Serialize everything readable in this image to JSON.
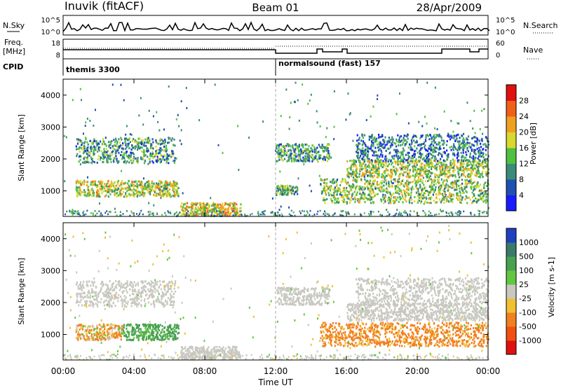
{
  "header": {
    "station": "Inuvik (fitACF)",
    "beam": "Beam 01",
    "date": "28/Apr/2009"
  },
  "top_panels": {
    "nsky_label": "N.Sky",
    "nsky_ticks": [
      "10^5",
      "10^0"
    ],
    "nsearch_label": "N.Search",
    "nsearch_ticks": [
      "10^5",
      "10^0"
    ],
    "freq_label": "Freq.",
    "freq_unit": "[MHz]",
    "freq_ticks": [
      "18",
      "8"
    ],
    "nave_label": "Nave",
    "nave_ticks": [
      "60",
      "0"
    ],
    "cpid_label": "CPID",
    "cpid_segments": [
      {
        "start_h": 0,
        "end_h": 12,
        "label": "themis 3300"
      },
      {
        "start_h": 12,
        "end_h": 24,
        "label": "normalsound (fast) 157"
      }
    ]
  },
  "chart_data": [
    {
      "type": "heatmap",
      "title": "",
      "xlabel": "Time UT",
      "ylabel": "Slant Range [km]",
      "xlim_hours": [
        0,
        24
      ],
      "ylim": [
        200,
        4500
      ],
      "yticks": [
        1000,
        2000,
        3000,
        4000
      ],
      "colorbar": {
        "label": "Power [dB]",
        "ticks": [
          4,
          8,
          12,
          16,
          20,
          24,
          28
        ],
        "range": [
          0,
          30
        ],
        "colors": [
          "#1a1aff",
          "#1f4fb0",
          "#3c8a78",
          "#50c040",
          "#d8d830",
          "#f0a020",
          "#f06018",
          "#e01010"
        ]
      },
      "echo_bands": [
        {
          "start_h": 0.7,
          "end_h": 6.5,
          "range_km": [
            850,
            1350
          ],
          "value": 16
        },
        {
          "start_h": 0.7,
          "end_h": 6.3,
          "range_km": [
            1900,
            2700
          ],
          "value": 10
        },
        {
          "start_h": 6.6,
          "end_h": 10.0,
          "range_km": [
            250,
            650
          ],
          "value": 18
        },
        {
          "start_h": 12.0,
          "end_h": 15.0,
          "range_km": [
            1950,
            2500
          ],
          "value": 10
        },
        {
          "start_h": 12.0,
          "end_h": 13.2,
          "range_km": [
            900,
            1200
          ],
          "value": 12
        },
        {
          "start_h": 14.5,
          "end_h": 24.0,
          "range_km": [
            650,
            1400
          ],
          "value": 14
        },
        {
          "start_h": 16.0,
          "end_h": 24.0,
          "range_km": [
            1450,
            2000
          ],
          "value": 15
        },
        {
          "start_h": 16.5,
          "end_h": 24.0,
          "range_km": [
            1950,
            2800
          ],
          "value": 8
        }
      ]
    },
    {
      "type": "heatmap",
      "title": "",
      "xlabel": "Time UT",
      "ylabel": "Slant Range [km]",
      "xlim_hours": [
        0,
        24
      ],
      "ylim": [
        200,
        4500
      ],
      "yticks": [
        1000,
        2000,
        3000,
        4000
      ],
      "xticks": [
        "00:00",
        "04:00",
        "08:00",
        "12:00",
        "16:00",
        "20:00",
        "00:00"
      ],
      "colorbar": {
        "label": "Velocity [m s-1]",
        "ticks": [
          "1000",
          "500",
          "100",
          "25",
          "-25",
          "-100",
          "-500",
          "-1000"
        ],
        "colors": [
          "#2040c0",
          "#3a7a68",
          "#48a050",
          "#60c840",
          "#c8c8c0",
          "#f0c030",
          "#f08020",
          "#f05010",
          "#e01010"
        ]
      },
      "echo_bands": [
        {
          "start_h": 0.7,
          "end_h": 3.3,
          "range_km": [
            850,
            1350
          ],
          "value": -100
        },
        {
          "start_h": 3.3,
          "end_h": 6.5,
          "range_km": [
            850,
            1350
          ],
          "value": 200
        },
        {
          "start_h": 0.7,
          "end_h": 6.3,
          "range_km": [
            1900,
            2700
          ],
          "value": 0
        },
        {
          "start_h": 6.6,
          "end_h": 10.0,
          "range_km": [
            250,
            650
          ],
          "value": 0
        },
        {
          "start_h": 12.0,
          "end_h": 15.0,
          "range_km": [
            1950,
            2500
          ],
          "value": 0
        },
        {
          "start_h": 14.5,
          "end_h": 24.0,
          "range_km": [
            650,
            1400
          ],
          "value": -200
        },
        {
          "start_h": 16.0,
          "end_h": 24.0,
          "range_km": [
            1450,
            2000
          ],
          "value": 0
        },
        {
          "start_h": 16.5,
          "end_h": 24.0,
          "range_km": [
            1950,
            2800
          ],
          "value": 0
        }
      ]
    }
  ]
}
